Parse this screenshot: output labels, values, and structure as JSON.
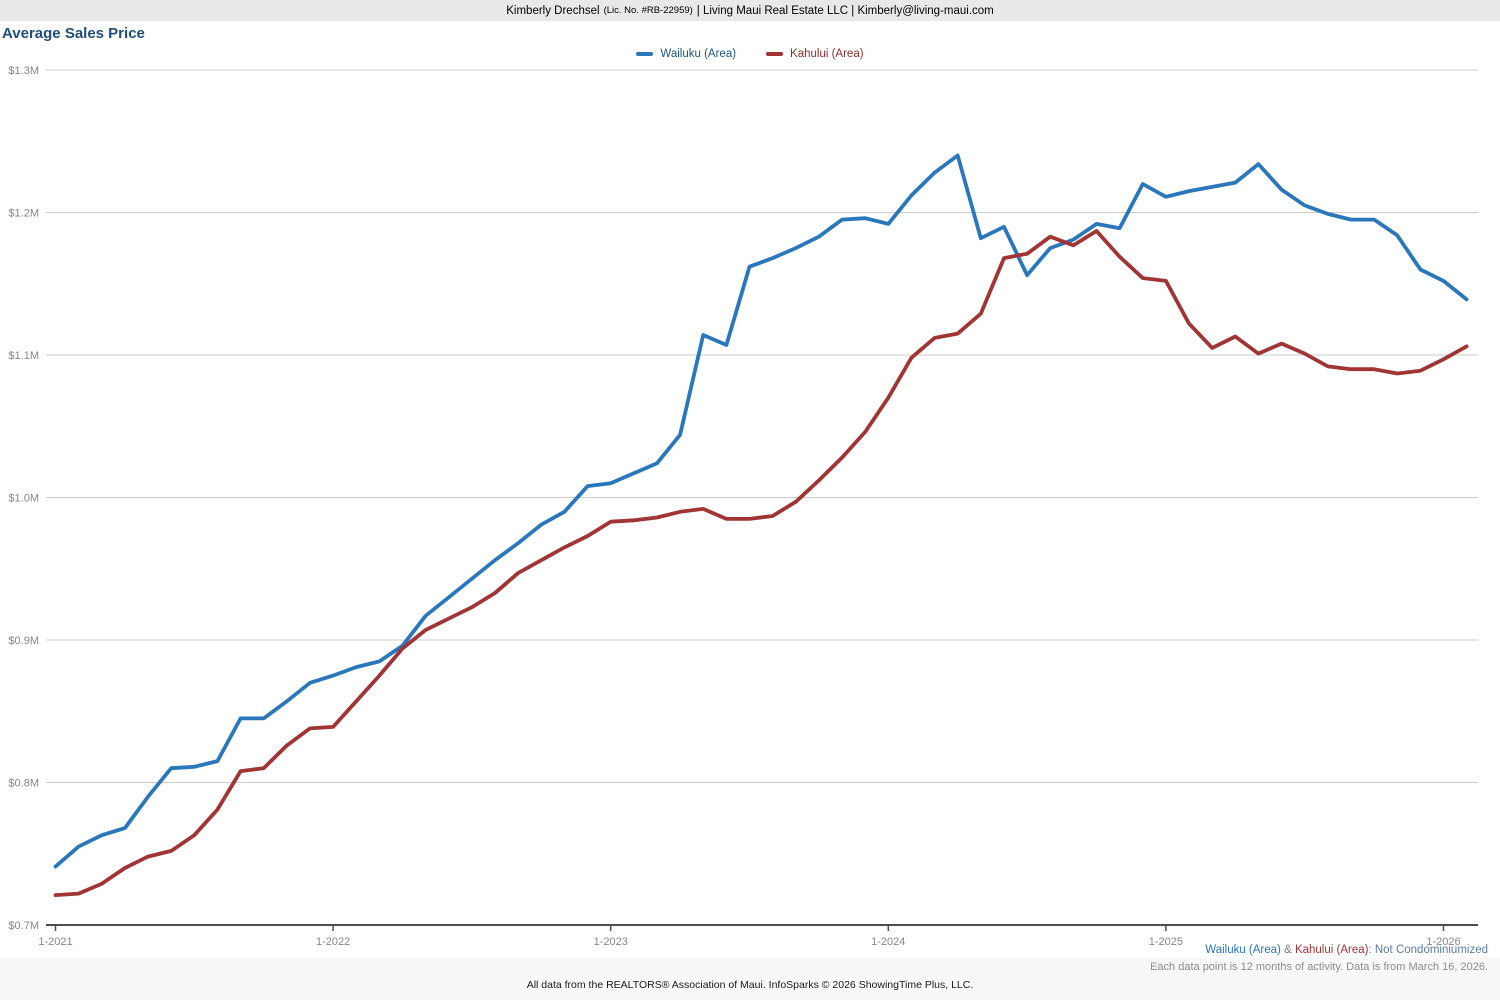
{
  "header": {
    "agent_name": "Kimberly Drechsel",
    "license": "(Lic. No. #RB-22959)",
    "company_contact": "| Living Maui Real Estate LLC | Kimberly@living-maui.com"
  },
  "title": "Average Sales Price",
  "legend": [
    {
      "label": "Wailuku (Area)",
      "color": "#2a77bb",
      "text_color": "#1c5687"
    },
    {
      "label": "Kahului (Area)",
      "color": "#a13434",
      "text_color": "#8c2d2d"
    }
  ],
  "footnote": {
    "series_note_parts": [
      {
        "text": "Wailuku (Area)",
        "color": "#2a77bb"
      },
      {
        "text": " & ",
        "color": "#7f7f7f"
      },
      {
        "text": "Kahului (Area)",
        "color": "#a13434"
      },
      {
        "text": ": Not Condominiumized",
        "color": "#5b7e9e"
      }
    ],
    "data_note": "Each data point is 12 months of activity. Data is from March 16, 2026.",
    "attribution": "All data from the REALTORS® Association of Maui. InfoSparks © 2026 ShowingTime Plus, LLC."
  },
  "chart_data": {
    "type": "line",
    "title": "Average Sales Price",
    "x_unit": "month",
    "x_start": "1-2021",
    "x_end": "2-2026",
    "points_per_series": 62,
    "x_tick_labels": [
      "1-2021",
      "1-2022",
      "1-2023",
      "1-2024",
      "1-2025",
      "1-2026"
    ],
    "y_tick_labels": [
      "$0.7M",
      "$0.8M",
      "$0.9M",
      "$1.0M",
      "$1.1M",
      "$1.2M",
      "$1.3M"
    ],
    "ylim": [
      0.7,
      1.3
    ],
    "y_unit": "million USD",
    "grid": "horizontal",
    "legend_position": "top-center",
    "axis_color": "#4d4d4d",
    "grid_color": "#cccccc",
    "tick_label_color": "#868686",
    "series": [
      {
        "name": "Wailuku (Area)",
        "color": "#2a77bb",
        "values": [
          0.741,
          0.755,
          0.763,
          0.768,
          0.79,
          0.81,
          0.811,
          0.815,
          0.845,
          0.845,
          0.857,
          0.87,
          0.875,
          0.881,
          0.885,
          0.896,
          0.917,
          0.93,
          0.943,
          0.956,
          0.968,
          0.981,
          0.99,
          1.008,
          1.01,
          1.017,
          1.024,
          1.044,
          1.114,
          1.107,
          1.162,
          1.168,
          1.175,
          1.183,
          1.195,
          1.196,
          1.192,
          1.212,
          1.228,
          1.24,
          1.182,
          1.19,
          1.156,
          1.175,
          1.181,
          1.192,
          1.189,
          1.22,
          1.211,
          1.215,
          1.218,
          1.221,
          1.234,
          1.216,
          1.205,
          1.199,
          1.195,
          1.195,
          1.184,
          1.16,
          1.152,
          1.139
        ]
      },
      {
        "name": "Kahului (Area)",
        "color": "#a13434",
        "values": [
          0.721,
          0.722,
          0.729,
          0.74,
          0.748,
          0.752,
          0.763,
          0.781,
          0.808,
          0.81,
          0.826,
          0.838,
          0.839,
          0.857,
          0.875,
          0.894,
          0.907,
          0.915,
          0.923,
          0.933,
          0.947,
          0.956,
          0.965,
          0.973,
          0.983,
          0.984,
          0.986,
          0.99,
          0.992,
          0.985,
          0.985,
          0.987,
          0.997,
          1.012,
          1.028,
          1.046,
          1.07,
          1.098,
          1.112,
          1.115,
          1.129,
          1.168,
          1.171,
          1.183,
          1.177,
          1.187,
          1.169,
          1.154,
          1.152,
          1.122,
          1.105,
          1.113,
          1.101,
          1.108,
          1.101,
          1.092,
          1.09,
          1.09,
          1.087,
          1.089,
          1.097,
          1.106
        ]
      }
    ]
  }
}
